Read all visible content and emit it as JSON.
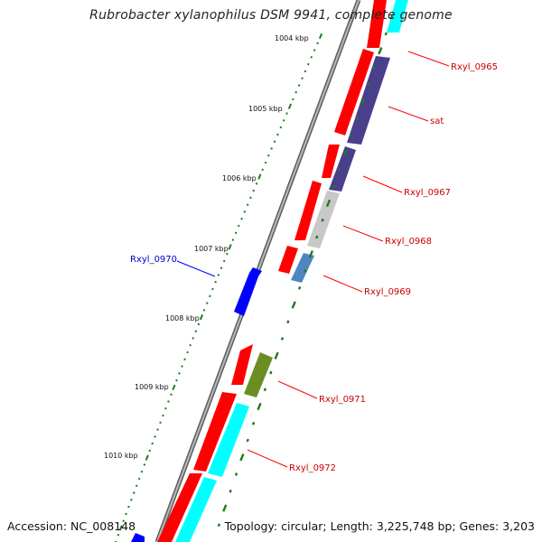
{
  "title": "Rubrobacter xylanophilus DSM 9941, complete genome",
  "footer": {
    "accession": "Accession: NC_008148",
    "summary": "Topology: circular; Length: 3,225,748 bp; Genes: 3,203"
  },
  "colors": {
    "backbone": "#8c8c8c",
    "tick": "#1e7a1e",
    "forward_gene": "#0000ff",
    "reverse_cds": "#ff0000",
    "label_reverse": "#cc0000",
    "label_forward": "#0000cc",
    "navy": "#4a3f8c",
    "cyan": "#00ffff",
    "grey": "#c8c8c8",
    "steel": "#4f86c0",
    "olive": "#6b8e23"
  },
  "scale_labels": [
    "1004 kbp",
    "1005 kbp",
    "1006 kbp",
    "1007 kbp",
    "1008 kbp",
    "1009 kbp",
    "1010 kbp"
  ],
  "gene_labels": [
    {
      "text": "Rxyl_0965",
      "color": "#cc0000"
    },
    {
      "text": "sat",
      "color": "#cc0000"
    },
    {
      "text": "Rxyl_0967",
      "color": "#cc0000"
    },
    {
      "text": "Rxyl_0968",
      "color": "#cc0000"
    },
    {
      "text": "Rxyl_0969",
      "color": "#cc0000"
    },
    {
      "text": "Rxyl_0970",
      "color": "#0000cc"
    },
    {
      "text": "Rxyl_0971",
      "color": "#cc0000"
    },
    {
      "text": "Rxyl_0972",
      "color": "#cc0000"
    }
  ]
}
